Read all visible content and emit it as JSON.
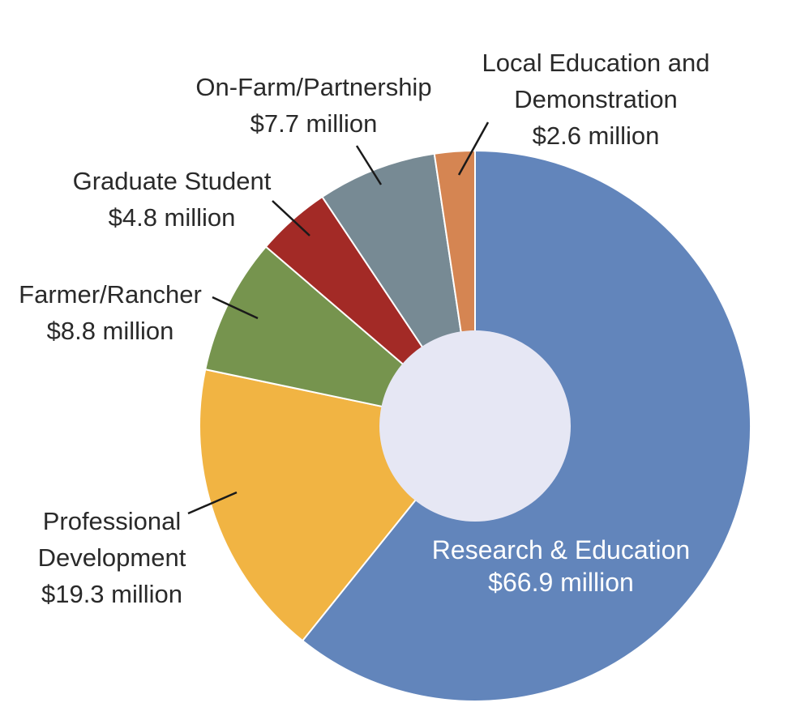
{
  "chart_data": {
    "type": "pie",
    "donut": true,
    "unit": "million",
    "categories": [
      "Research & Education",
      "Professional Development",
      "Farmer/Rancher",
      "Graduate Student",
      "On-Farm/Partnership",
      "Local Education and Demonstration"
    ],
    "values": [
      66.9,
      19.3,
      8.8,
      4.8,
      7.7,
      2.6
    ],
    "value_labels": [
      "$66.9 million",
      "$19.3 million",
      "$8.8 million",
      "$4.8 million",
      "$7.7 million",
      "$2.6 million"
    ],
    "label_lines": [
      [
        "Research & Education",
        "$66.9 million"
      ],
      [
        "Professional",
        "Development",
        "$19.3 million"
      ],
      [
        "Farmer/Rancher",
        "$8.8 million"
      ],
      [
        "Graduate Student",
        "$4.8 million"
      ],
      [
        "On-Farm/Partnership",
        "$7.7 million"
      ],
      [
        "Local Education and",
        "Demonstration",
        "$2.6 million"
      ]
    ],
    "colors": [
      "#6285bb",
      "#f1b443",
      "#76944e",
      "#a32a26",
      "#778a94",
      "#d58552"
    ],
    "center_color": "#e6e7f4",
    "title": "",
    "legend": "none"
  }
}
